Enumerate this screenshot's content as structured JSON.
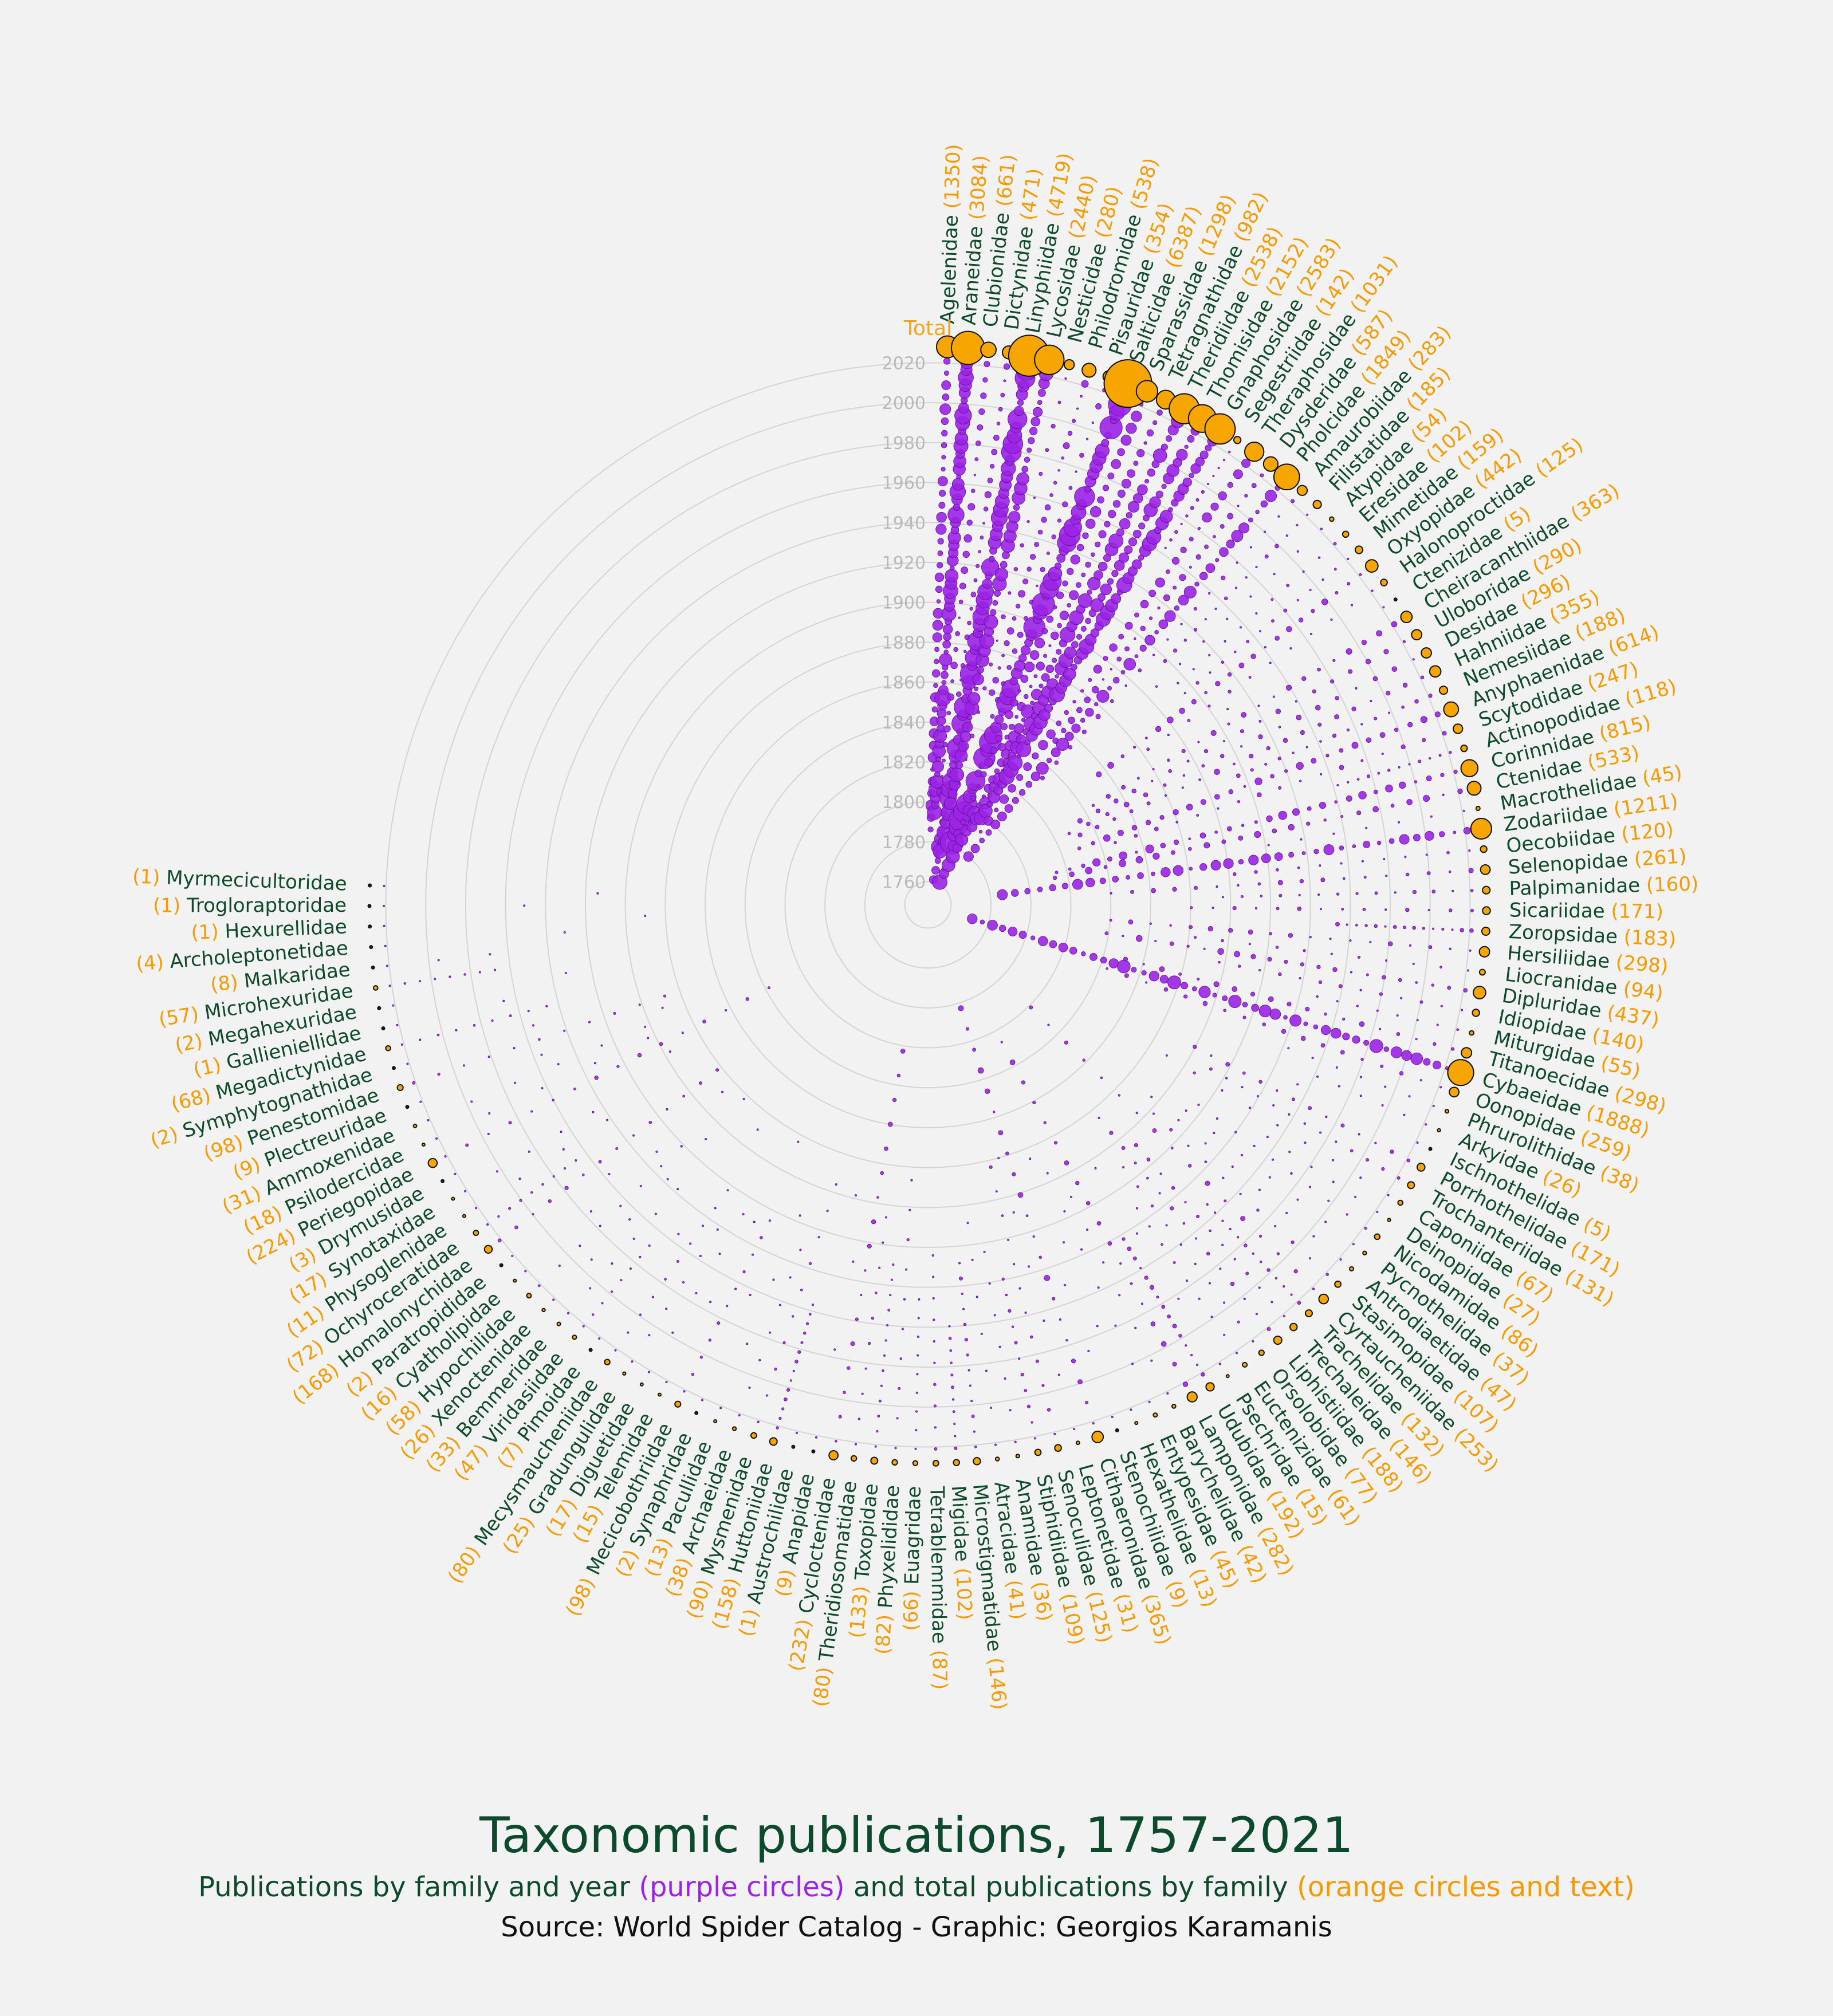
{
  "title": "Taxonomic publications, 1757-2021",
  "subtitle": {
    "part1": "Publications by family and year ",
    "purple": "(purple circles)",
    "part2": " and total publications by family ",
    "orange": "(orange circles and text)"
  },
  "source": "Source: World Spider Catalog - Graphic: Georgios Karamanis",
  "colors": {
    "background": "#f2f2f2",
    "purple": "#9b22e6",
    "orange": "#f7a500",
    "green": "#0f4a2a"
  },
  "chart_data": {
    "type": "scatter",
    "description_axis": "radial year axis",
    "total_label": "Total",
    "year_ticks": [
      1760,
      1780,
      1800,
      1820,
      1840,
      1860,
      1880,
      1900,
      1920,
      1940,
      1960,
      1980,
      2000,
      2020
    ],
    "year_range": [
      1757,
      2021
    ],
    "families": [
      {
        "name": "Agelenidae",
        "total": 1350
      },
      {
        "name": "Araneidae",
        "total": 3084
      },
      {
        "name": "Clubionidae",
        "total": 661
      },
      {
        "name": "Dictynidae",
        "total": 471
      },
      {
        "name": "Linyphiidae",
        "total": 4719
      },
      {
        "name": "Lycosidae",
        "total": 2440
      },
      {
        "name": "Nesticidae",
        "total": 280
      },
      {
        "name": "Philodromidae",
        "total": 538
      },
      {
        "name": "Pisauridae",
        "total": 354
      },
      {
        "name": "Salticidae",
        "total": 6387
      },
      {
        "name": "Sparassidae",
        "total": 1298
      },
      {
        "name": "Tetragnathidae",
        "total": 982
      },
      {
        "name": "Theridiidae",
        "total": 2538
      },
      {
        "name": "Thomisidae",
        "total": 2152
      },
      {
        "name": "Gnaphosidae",
        "total": 2583
      },
      {
        "name": "Segestriidae",
        "total": 142
      },
      {
        "name": "Theraphosidae",
        "total": 1031
      },
      {
        "name": "Dysderidae",
        "total": 587
      },
      {
        "name": "Pholcidae",
        "total": 1849
      },
      {
        "name": "Amaurobiidae",
        "total": 283
      },
      {
        "name": "Filistatidae",
        "total": 185
      },
      {
        "name": "Atypidae",
        "total": 54
      },
      {
        "name": "Eresidae",
        "total": 102
      },
      {
        "name": "Mimetidae",
        "total": 159
      },
      {
        "name": "Oxyopidae",
        "total": 442
      },
      {
        "name": "Halonoproctidae",
        "total": 125
      },
      {
        "name": "Ctenizidae",
        "total": 5
      },
      {
        "name": "Cheiracanthiidae",
        "total": 363
      },
      {
        "name": "Uloboridae",
        "total": 290
      },
      {
        "name": "Desidae",
        "total": 296
      },
      {
        "name": "Hahniidae",
        "total": 355
      },
      {
        "name": "Nemesiidae",
        "total": 188
      },
      {
        "name": "Anyphaenidae",
        "total": 614
      },
      {
        "name": "Scytodidae",
        "total": 247
      },
      {
        "name": "Actinopodidae",
        "total": 118
      },
      {
        "name": "Corinnidae",
        "total": 815
      },
      {
        "name": "Ctenidae",
        "total": 533
      },
      {
        "name": "Macrothelidae",
        "total": 45
      },
      {
        "name": "Zodariidae",
        "total": 1211
      },
      {
        "name": "Oecobiidae",
        "total": 120
      },
      {
        "name": "Selenopidae",
        "total": 261
      },
      {
        "name": "Palpimanidae",
        "total": 160
      },
      {
        "name": "Sicariidae",
        "total": 171
      },
      {
        "name": "Zoropsidae",
        "total": 183
      },
      {
        "name": "Hersiliidae",
        "total": 298
      },
      {
        "name": "Liocranidae",
        "total": 94
      },
      {
        "name": "Dipluridae",
        "total": 437
      },
      {
        "name": "Idiopidae",
        "total": 140
      },
      {
        "name": "Miturgidae",
        "total": 55
      },
      {
        "name": "Titanoecidae",
        "total": 298
      },
      {
        "name": "Cybaeidae",
        "total": 1888
      },
      {
        "name": "Oonopidae",
        "total": 259
      },
      {
        "name": "Phrurolithidae",
        "total": 38
      },
      {
        "name": "Arkyidae",
        "total": 26
      },
      {
        "name": "Ischnothelidae",
        "total": 5
      },
      {
        "name": "Porrhothelidae",
        "total": 171
      },
      {
        "name": "Trochanteriidae",
        "total": 131
      },
      {
        "name": "Caponiidae",
        "total": 67
      },
      {
        "name": "Deinopidae",
        "total": 27
      },
      {
        "name": "Nicodamidae",
        "total": 86
      },
      {
        "name": "Pycnothelidae",
        "total": 37
      },
      {
        "name": "Antrodiaetidae",
        "total": 47
      },
      {
        "name": "Stasimopidae",
        "total": 107
      },
      {
        "name": "Cyrtaucheniidae",
        "total": 253
      },
      {
        "name": "Trachelidae",
        "total": 132
      },
      {
        "name": "Trechaleidae",
        "total": 146
      },
      {
        "name": "Liphistiidae",
        "total": 188
      },
      {
        "name": "Orsolobidae",
        "total": 77
      },
      {
        "name": "Euctenizidae",
        "total": 61
      },
      {
        "name": "Psechridae",
        "total": 15
      },
      {
        "name": "Udubidae",
        "total": 192
      },
      {
        "name": "Lamponidae",
        "total": 282
      },
      {
        "name": "Barychelidae",
        "total": 42
      },
      {
        "name": "Entypesidae",
        "total": 45
      },
      {
        "name": "Hexathelidae",
        "total": 13
      },
      {
        "name": "Stenochilidae",
        "total": 9
      },
      {
        "name": "Cithaeronidae",
        "total": 365
      },
      {
        "name": "Leptonetidae",
        "total": 31
      },
      {
        "name": "Senoculidae",
        "total": 125
      },
      {
        "name": "Stiphidiidae",
        "total": 109
      },
      {
        "name": "Anamidae",
        "total": 36
      },
      {
        "name": "Atracidae",
        "total": 41
      },
      {
        "name": "Microstigmatidae",
        "total": 146
      },
      {
        "name": "Migidae",
        "total": 102
      },
      {
        "name": "Tetrablemmidae",
        "total": 87
      },
      {
        "name": "Euagridae",
        "total": 66
      },
      {
        "name": "Phyxelididae",
        "total": 82
      },
      {
        "name": "Toxopidae",
        "total": 133
      },
      {
        "name": "Theridiosomatidae",
        "total": 80
      },
      {
        "name": "Cycloctenidae",
        "total": 232
      },
      {
        "name": "Anapidae",
        "total": 9
      },
      {
        "name": "Austrochilidae",
        "total": 1
      },
      {
        "name": "Huttoniidae",
        "total": 158
      },
      {
        "name": "Mysmenidae",
        "total": 90
      },
      {
        "name": "Archaeidae",
        "total": 38
      },
      {
        "name": "Pacullidae",
        "total": 13
      },
      {
        "name": "Synaphridae",
        "total": 2
      },
      {
        "name": "Mecicobothriidae",
        "total": 98
      },
      {
        "name": "Telemidae",
        "total": 15
      },
      {
        "name": "Diguetidae",
        "total": 17
      },
      {
        "name": "Gradungulidae",
        "total": 25
      },
      {
        "name": "Mecysmaucheniidae",
        "total": 80
      },
      {
        "name": "Pimoidae",
        "total": 7
      },
      {
        "name": "Viridasiidae",
        "total": 47
      },
      {
        "name": "Bemmeridae",
        "total": 33
      },
      {
        "name": "Xenoctenidae",
        "total": 26
      },
      {
        "name": "Hypochilidae",
        "total": 58
      },
      {
        "name": "Cyatholipidae",
        "total": 16
      },
      {
        "name": "Paratropididae",
        "total": 2
      },
      {
        "name": "Homalonychidae",
        "total": 168
      },
      {
        "name": "Ochyroceratidae",
        "total": 72
      },
      {
        "name": "Physoglenidae",
        "total": 11
      },
      {
        "name": "Synotaxidae",
        "total": 17
      },
      {
        "name": "Drymusidae",
        "total": 3
      },
      {
        "name": "Periegopidae",
        "total": 224
      },
      {
        "name": "Psilodercidae",
        "total": 18
      },
      {
        "name": "Ammoxenidae",
        "total": 31
      },
      {
        "name": "Plectreuridae",
        "total": 9
      },
      {
        "name": "Penestomidae",
        "total": 98
      },
      {
        "name": "Symphytognathidae",
        "total": 2
      },
      {
        "name": "Megadictynidae",
        "total": 68
      },
      {
        "name": "Gallieniellidae",
        "total": 1
      },
      {
        "name": "Megahexuridae",
        "total": 2
      },
      {
        "name": "Microhexuridae",
        "total": 57
      },
      {
        "name": "Malkaridae",
        "total": 8
      },
      {
        "name": "Archoleptonetidae",
        "total": 4
      },
      {
        "name": "Hexurellidae",
        "total": 1
      },
      {
        "name": "Trogloraptoridae",
        "total": 1
      },
      {
        "name": "Myrmecicultoridae",
        "total": 1
      }
    ]
  }
}
